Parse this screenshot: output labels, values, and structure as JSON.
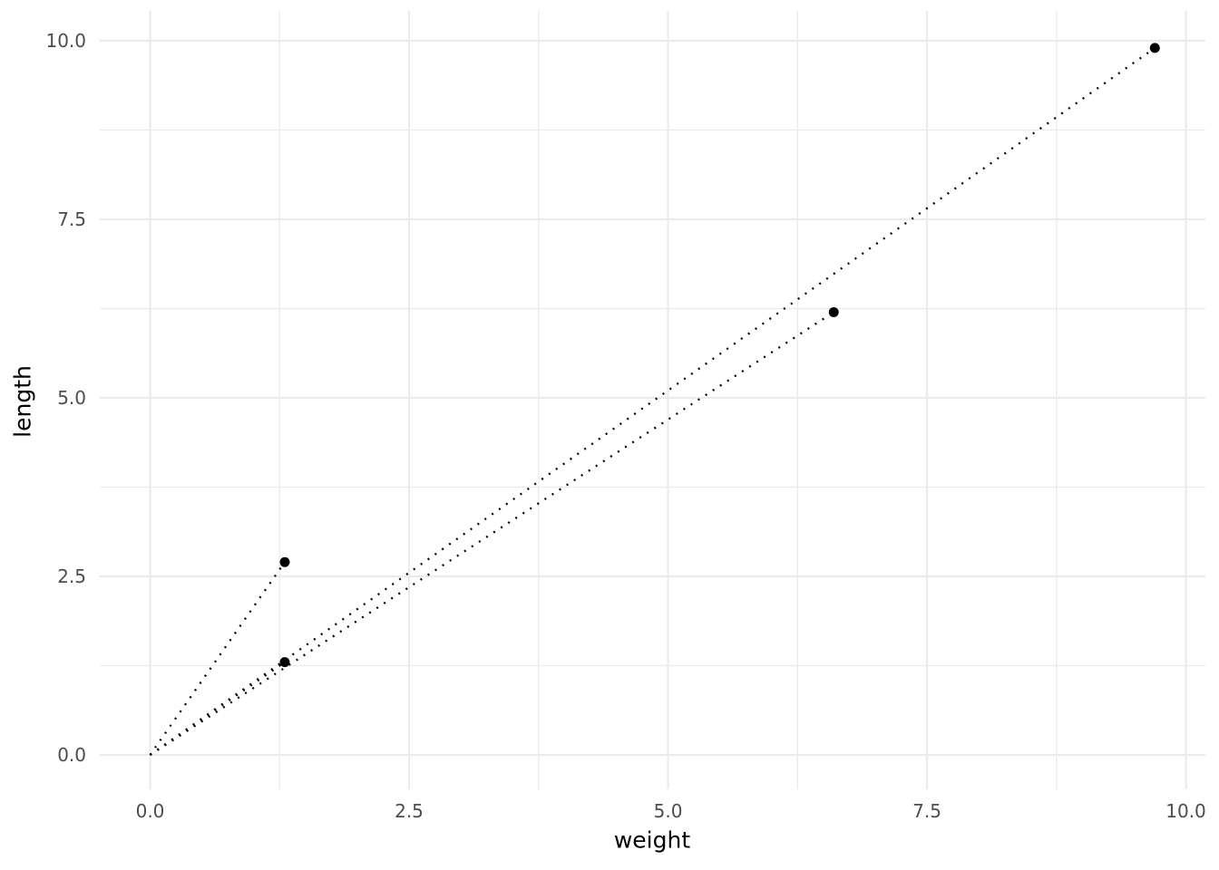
{
  "chart_data": {
    "type": "scatter",
    "title": "",
    "xlabel": "weight",
    "ylabel": "length",
    "xlim": [
      -0.486,
      10.188
    ],
    "ylim": [
      -0.482,
      10.419
    ],
    "x_ticks": [
      0.0,
      2.5,
      5.0,
      7.5,
      10.0
    ],
    "y_ticks": [
      0.0,
      2.5,
      5.0,
      7.5,
      10.0
    ],
    "x_tick_labels": [
      "0.0",
      "2.5",
      "5.0",
      "7.5",
      "10.0"
    ],
    "y_tick_labels": [
      "0.0",
      "2.5",
      "5.0",
      "7.5",
      "10.0"
    ],
    "x_minor_breaks": [
      1.25,
      3.75,
      6.25,
      8.75
    ],
    "y_minor_breaks": [
      1.25,
      3.75,
      6.25,
      8.75
    ],
    "grid": true,
    "legend_position": "none",
    "points": [
      {
        "x": 1.3,
        "y": 2.7
      },
      {
        "x": 1.3,
        "y": 1.3
      },
      {
        "x": 6.6,
        "y": 6.2
      },
      {
        "x": 9.7,
        "y": 9.9
      }
    ],
    "segments": [
      {
        "x1": 0,
        "y1": 0,
        "x2": 1.3,
        "y2": 2.7
      },
      {
        "x1": 0,
        "y1": 0,
        "x2": 1.3,
        "y2": 1.3
      },
      {
        "x1": 0,
        "y1": 0,
        "x2": 6.6,
        "y2": 6.2
      },
      {
        "x1": 0,
        "y1": 0,
        "x2": 9.7,
        "y2": 9.9
      }
    ],
    "line_style": "dotted",
    "colors": {
      "background": "#ffffff",
      "grid_major": "#ebebeb",
      "grid_minor": "#ebebeb",
      "point": "#000000",
      "segment": "#000000",
      "tick_label": "#4d4d4d",
      "axis_title": "#000000"
    }
  }
}
